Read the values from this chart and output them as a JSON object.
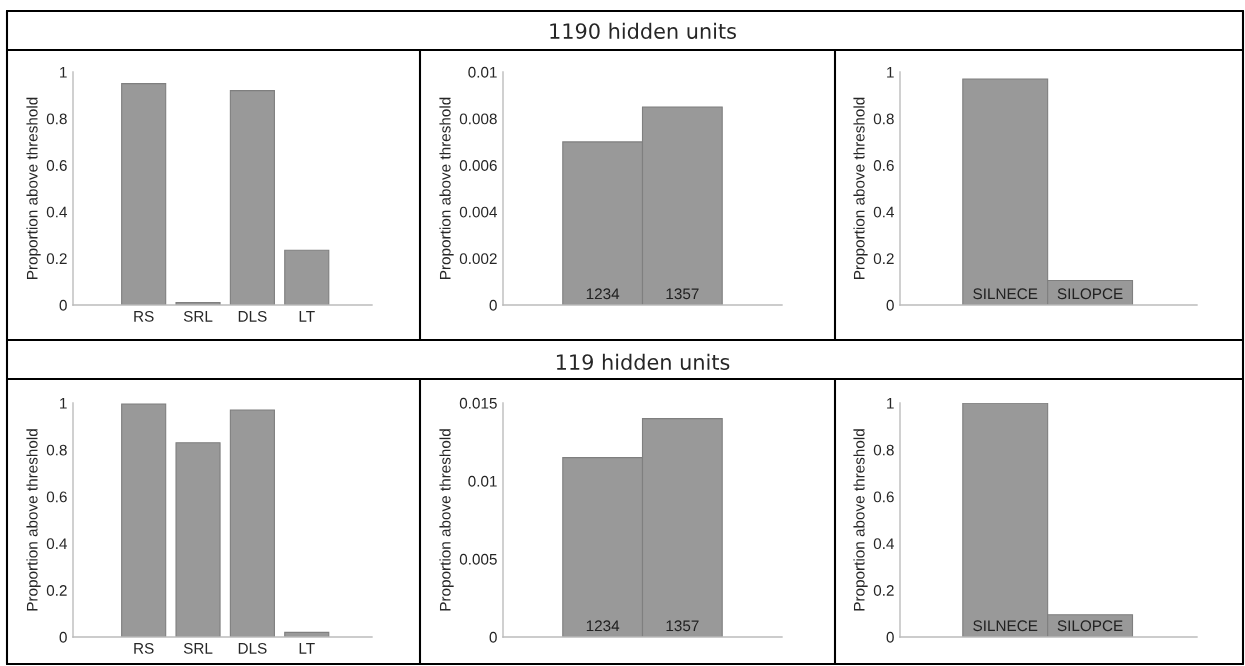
{
  "chart_data": [
    {
      "type": "bar",
      "categories": [
        "RS",
        "SRL",
        "DLS",
        "LT"
      ],
      "values": [
        0.95,
        0.01,
        0.92,
        0.235
      ],
      "color": "#999999",
      "ylabel": "Proportion above threshold",
      "ylim": [
        0,
        1
      ],
      "yticks": [
        0,
        0.2,
        0.4,
        0.6,
        0.8,
        1
      ]
    },
    {
      "type": "bar",
      "title": "1190 hidden units",
      "categories": [
        "1234",
        "1357"
      ],
      "values": [
        0.007,
        0.0085
      ],
      "color": "#999999",
      "ylabel": "Proportion above threshold",
      "ylim": [
        0,
        0.01
      ],
      "yticks": [
        0,
        0.002,
        0.004,
        0.006,
        0.008,
        0.01
      ]
    },
    {
      "type": "bar",
      "categories": [
        "SILNECE",
        "SILOPCE"
      ],
      "values": [
        0.97,
        0.105
      ],
      "color": "#999999",
      "ylabel": "Proportion above threshold",
      "ylim": [
        0,
        1
      ],
      "yticks": [
        0,
        0.2,
        0.4,
        0.6,
        0.8,
        1
      ]
    },
    {
      "type": "bar",
      "categories": [
        "RS",
        "SRL",
        "DLS",
        "LT"
      ],
      "values": [
        0.995,
        0.83,
        0.97,
        0.02
      ],
      "color": "#999999",
      "ylabel": "Proportion above threshold",
      "ylim": [
        0,
        1
      ],
      "yticks": [
        0,
        0.2,
        0.4,
        0.6,
        0.8,
        1
      ]
    },
    {
      "type": "bar",
      "title": "119 hidden units",
      "categories": [
        "1234",
        "1357"
      ],
      "values": [
        0.0115,
        0.014
      ],
      "color": "#999999",
      "ylabel": "Proportion above threshold",
      "ylim": [
        0,
        0.015
      ],
      "yticks": [
        0,
        0.005,
        0.01,
        0.015
      ]
    },
    {
      "type": "bar",
      "categories": [
        "SILNECE",
        "SILOPCE"
      ],
      "values": [
        1,
        0.095
      ],
      "color": "#999999",
      "ylabel": "Proportion above threshold",
      "ylim": [
        0,
        1
      ],
      "yticks": [
        0,
        0.2,
        0.4,
        0.6,
        0.8,
        1
      ]
    }
  ]
}
